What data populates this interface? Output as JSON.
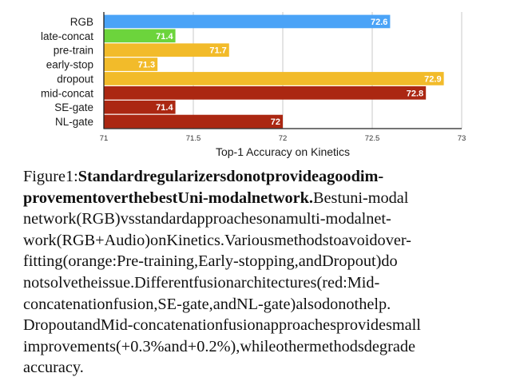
{
  "chart_data": {
    "type": "bar",
    "orientation": "horizontal",
    "categories": [
      "RGB",
      "late-concat",
      "pre-train",
      "early-stop",
      "dropout",
      "mid-concat",
      "SE-gate",
      "NL-gate"
    ],
    "values": [
      72.6,
      71.4,
      71.7,
      71.3,
      72.9,
      72.8,
      71.4,
      72
    ],
    "value_labels": [
      "72.6",
      "71.4",
      "71.7",
      "71.3",
      "72.9",
      "72.8",
      "71.4",
      "72"
    ],
    "colors": [
      "#4aa3f7",
      "#6cd43c",
      "#f2bb2a",
      "#f2bb2a",
      "#f2bb2a",
      "#ab2712",
      "#ab2712",
      "#ab2712"
    ],
    "xlabel": "Top-1 Accuracy on Kinetics",
    "ylabel": "",
    "xlim": [
      71,
      73
    ],
    "xticks": [
      71,
      71.5,
      72,
      72.5,
      73
    ],
    "xtick_labels": [
      "71",
      "71.5",
      "72",
      "72.5",
      "73"
    ],
    "grid": true,
    "title": ""
  },
  "caption": {
    "lines": [
      [
        {
          "t": "Figure 1: ",
          "b": false
        },
        {
          "t": "Standard regularizers do not provide a good im-",
          "b": true
        }
      ],
      [
        {
          "t": "provement over the best Uni-modal network.",
          "b": true
        },
        {
          "t": " Best uni-modal",
          "b": false
        }
      ],
      [
        {
          "t": "network (RGB) vs standard approaches on a multi-modal net-",
          "b": false
        }
      ],
      [
        {
          "t": "work (RGB+Audio) on Kinetics. Various methods to avoid over-",
          "b": false
        }
      ],
      [
        {
          "t": "fitting (orange:  Pre-training, Early-stopping, and Dropout) do",
          "b": false
        }
      ],
      [
        {
          "t": "not solve the issue.  Different fusion architectures (red:  Mid-",
          "b": false
        }
      ],
      [
        {
          "t": "concatenation fusion, SE-gate, and NL-gate) also do not help.",
          "b": false
        }
      ],
      [
        {
          "t": "Dropout and Mid-concatenation fusion approaches provide small",
          "b": false
        }
      ],
      [
        {
          "t": "improvements (+0.3% and +0.2%), while other methods degrade",
          "b": false
        }
      ],
      [
        {
          "t": "accuracy.",
          "b": false
        }
      ]
    ]
  }
}
